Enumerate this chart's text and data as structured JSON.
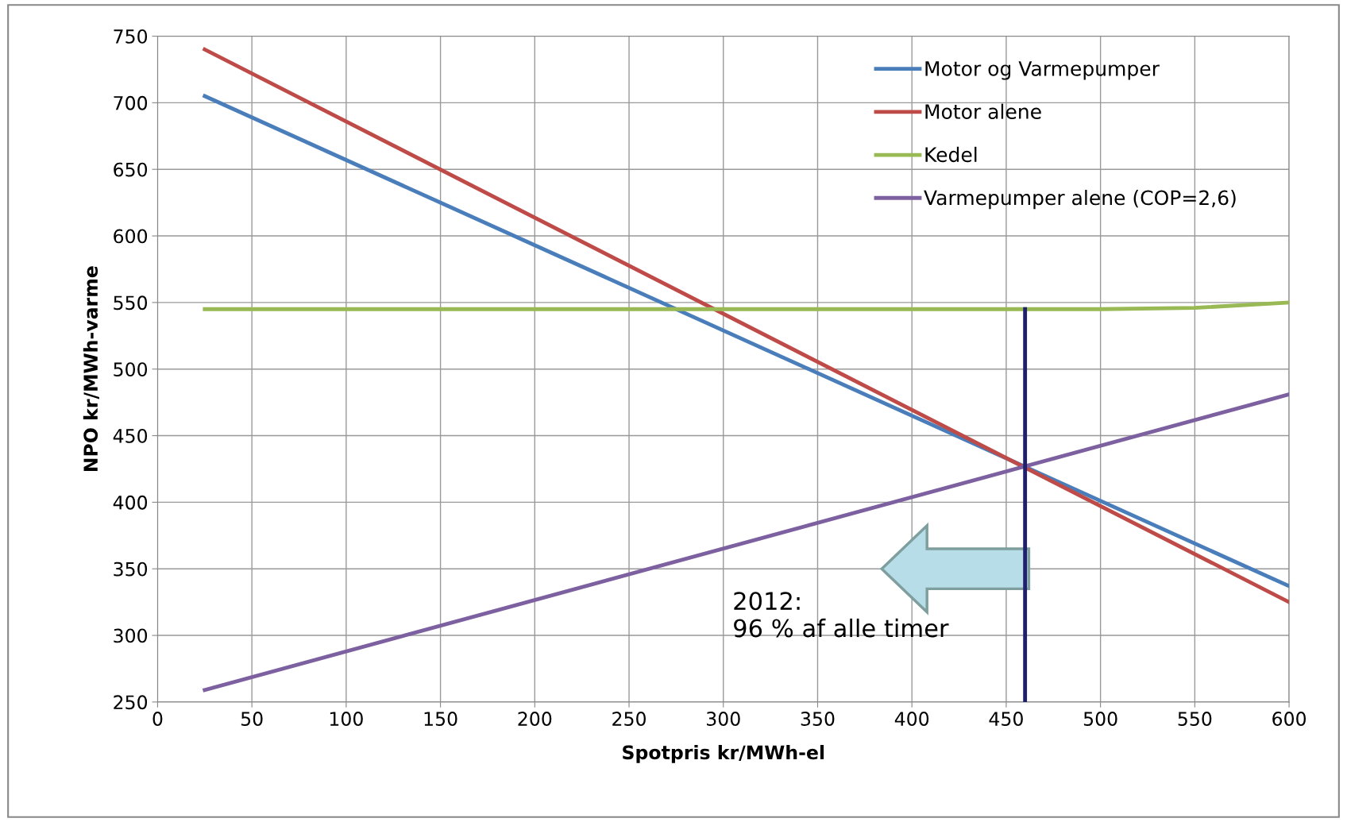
{
  "chart_data": {
    "type": "line",
    "xlabel": "Spotpris kr/MWh-el",
    "ylabel": "NPO kr/MWh-varme",
    "x": [
      25,
      600
    ],
    "series": [
      {
        "name": "Motor og Varmepumper",
        "color": "#4a7ebb",
        "values": [
          705,
          337
        ]
      },
      {
        "name": "Motor alene",
        "color": "#be4b48",
        "values": [
          740,
          325
        ]
      },
      {
        "name": "Kedel",
        "color": "#98b954",
        "x": [
          25,
          500,
          550,
          600
        ],
        "values": [
          545,
          545,
          546,
          550
        ]
      },
      {
        "name": "Varmepumper alene (COP=2,6)",
        "color": "#7d60a0",
        "values": [
          259,
          481
        ]
      },
      {
        "color": "#1f1f6e",
        "x": [
          460,
          460
        ],
        "values": [
          250,
          545
        ]
      }
    ],
    "annotations": [
      "2012:\n96 % af alle timer"
    ],
    "xlim": [
      0,
      600
    ],
    "xticks": [
      0,
      50,
      100,
      150,
      200,
      250,
      300,
      350,
      400,
      450,
      500,
      550,
      600
    ],
    "ylim": [
      250,
      750
    ],
    "yticks": [
      250,
      300,
      350,
      400,
      450,
      500,
      550,
      600,
      650,
      700,
      750
    ],
    "grid": true,
    "legend": "top right",
    "marker": "none",
    "line_style": "solid"
  }
}
